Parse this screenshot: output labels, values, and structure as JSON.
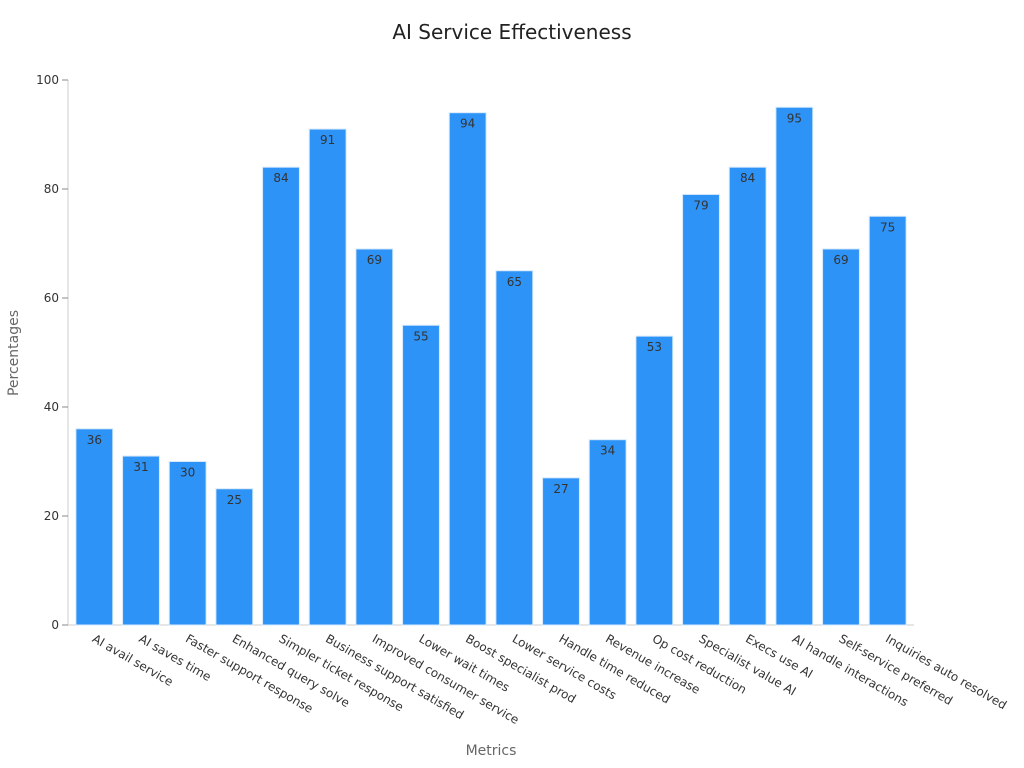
{
  "chart_data": {
    "type": "bar",
    "title": "AI Service Effectiveness",
    "xlabel": "Metrics",
    "ylabel": "Percentages",
    "categories": [
      "AI avail service",
      "AI saves time",
      "Faster support response",
      "Enhanced query solve",
      "Simpler ticket response",
      "Business support satisfied",
      "Improved consumer service",
      "Lower wait times",
      "Boost specialist prod",
      "Lower service costs",
      "Handle time reduced",
      "Revenue increase",
      "Op cost reduction",
      "Specialist value AI",
      "Execs use AI",
      "AI handle interactions",
      "Self-service preferred",
      "Inquiries auto resolved"
    ],
    "values": [
      36,
      31,
      30,
      25,
      84,
      91,
      69,
      55,
      94,
      65,
      27,
      34,
      53,
      79,
      84,
      95,
      69,
      75
    ],
    "ylim": [
      0,
      100
    ],
    "yticks": [
      0,
      20,
      40,
      60,
      80,
      100
    ],
    "grid": false,
    "bar_color": "#2e93f7",
    "bar_edge_color": "#d6e9fb"
  }
}
